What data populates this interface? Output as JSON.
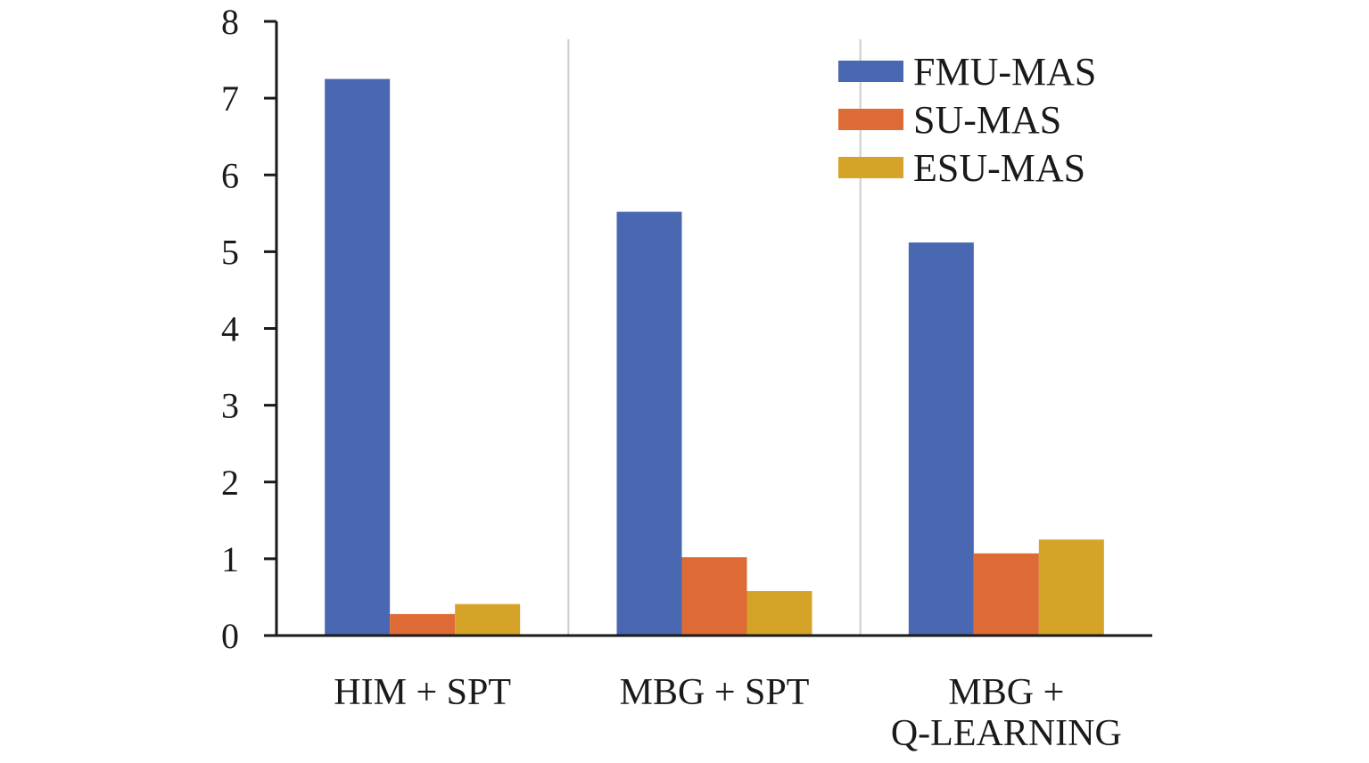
{
  "chart_data": {
    "type": "bar",
    "categories": [
      [
        "HIM + SPT"
      ],
      [
        "MBG + SPT"
      ],
      [
        "MBG +",
        "Q-LEARNING"
      ]
    ],
    "series": [
      {
        "name": "FMU-MAS",
        "color": "#4a68b2",
        "values": [
          7.25,
          5.52,
          5.12
        ]
      },
      {
        "name": "SU-MAS",
        "color": "#de6a35",
        "values": [
          0.28,
          1.02,
          1.07
        ]
      },
      {
        "name": "ESU-MAS",
        "color": "#d6a329",
        "values": [
          0.41,
          0.58,
          1.25
        ]
      }
    ],
    "ylim": [
      0,
      8
    ],
    "yticks": [
      0,
      1,
      2,
      3,
      4,
      5,
      6,
      7,
      8
    ],
    "legend": "top-right",
    "grid": "vertical group separators"
  }
}
